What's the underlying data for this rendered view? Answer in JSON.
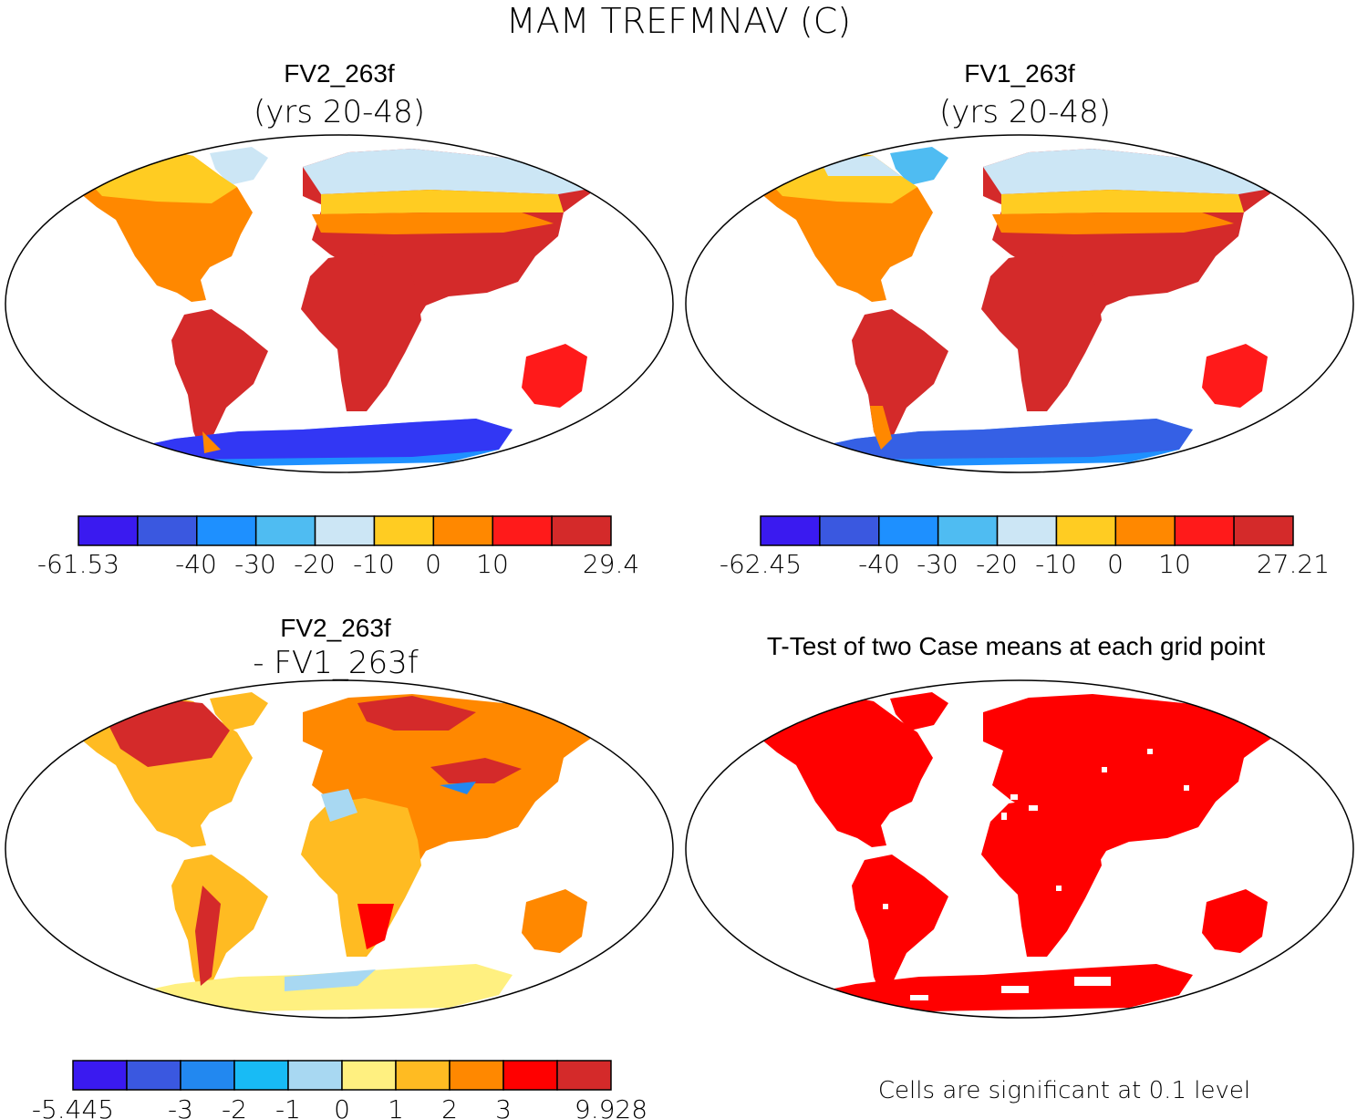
{
  "figure": {
    "title": "MAM TREFMNAV (C)",
    "footnote": "Cells are significant at 0.1 level"
  },
  "panels": [
    {
      "id": "fv2",
      "title": "FV2_263f",
      "subtitle": "(yrs 20-48)",
      "colorbar": {
        "colors": [
          "#3a1af0",
          "#3a58e0",
          "#1e90ff",
          "#4fbcf2",
          "#cce6f5",
          "#ffcc22",
          "#ff8800",
          "#ff1a1a",
          "#d42a2a"
        ],
        "labels": [
          "-61.53",
          "-40",
          "-30",
          "-20",
          "-10",
          "0",
          "10",
          "29.4"
        ]
      }
    },
    {
      "id": "fv1",
      "title": "FV1_263f",
      "subtitle": "(yrs 20-48)",
      "colorbar": {
        "colors": [
          "#3a1af0",
          "#3a58e0",
          "#1e90ff",
          "#4fbcf2",
          "#cce6f5",
          "#ffcc22",
          "#ff8800",
          "#ff1a1a",
          "#d42a2a"
        ],
        "labels": [
          "-62.45",
          "-40",
          "-30",
          "-20",
          "-10",
          "0",
          "10",
          "27.21"
        ]
      }
    },
    {
      "id": "diff",
      "title": "FV2_263f",
      "subtitle": "- FV1_263f",
      "colorbar": {
        "colors": [
          "#3a1af0",
          "#3a58e0",
          "#2288f0",
          "#18bbf5",
          "#a8d8f2",
          "#fff080",
          "#ffbb22",
          "#ff8800",
          "#ff0000",
          "#d42a2a"
        ],
        "labels": [
          "-5.445",
          "-3",
          "-2",
          "-1",
          "0",
          "1",
          "2",
          "3",
          "9.928"
        ]
      }
    },
    {
      "id": "ttest",
      "title": "T-Test of two Case means at each grid point"
    }
  ]
}
